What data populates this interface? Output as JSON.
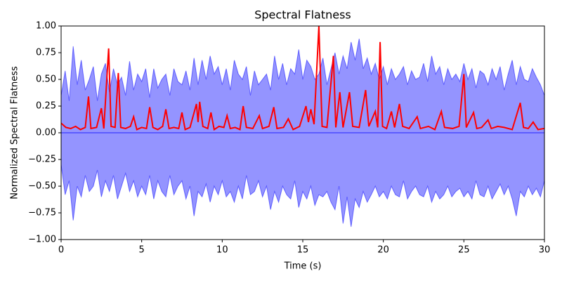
{
  "chart_data": {
    "type": "line",
    "title": "Spectral Flatness",
    "x_label": "Time (s)",
    "y_label": "Normalized Spectral Flatness",
    "xlim": [
      0,
      30
    ],
    "ylim": [
      -1,
      1
    ],
    "xticks": [
      0,
      5,
      10,
      15,
      20,
      25,
      30
    ],
    "yticks": [
      {
        "value": -1,
        "label": "−1.00"
      },
      {
        "value": -0.75,
        "label": "−0.75"
      },
      {
        "value": -0.5,
        "label": "−0.50"
      },
      {
        "value": -0.25,
        "label": "−0.25"
      },
      {
        "value": 0,
        "label": "0.00"
      },
      {
        "value": 0.25,
        "label": "0.25"
      },
      {
        "value": 0.5,
        "label": "0.50"
      },
      {
        "value": 0.75,
        "label": "0.75"
      },
      {
        "value": 1,
        "label": "1.00"
      }
    ],
    "series": [
      {
        "color": "#0000ff",
        "x": [
          0,
          0.25,
          0.5,
          0.75,
          1,
          1.25,
          1.5,
          1.75,
          2,
          2.25,
          2.5,
          2.75,
          3,
          3.25,
          3.5,
          3.75,
          4,
          4.25,
          4.5,
          4.75,
          5,
          5.25,
          5.5,
          5.75,
          6,
          6.25,
          6.5,
          6.75,
          7,
          7.25,
          7.5,
          7.75,
          8,
          8.25,
          8.5,
          8.75,
          9,
          9.25,
          9.5,
          9.75,
          10,
          10.25,
          10.5,
          10.75,
          11,
          11.25,
          11.5,
          11.75,
          12,
          12.25,
          12.5,
          12.75,
          13,
          13.25,
          13.5,
          13.75,
          14,
          14.25,
          14.5,
          14.75,
          15,
          15.25,
          15.5,
          15.75,
          16,
          16.25,
          16.5,
          16.75,
          17,
          17.25,
          17.5,
          17.75,
          18,
          18.25,
          18.5,
          18.75,
          19,
          19.25,
          19.5,
          19.75,
          20,
          20.25,
          20.5,
          20.75,
          21,
          21.25,
          21.5,
          21.75,
          22,
          22.25,
          22.5,
          22.75,
          23,
          23.25,
          23.5,
          23.75,
          24,
          24.25,
          24.5,
          24.75,
          25,
          25.25,
          25.5,
          25.75,
          26,
          26.25,
          26.5,
          26.75,
          27,
          27.25,
          27.5,
          27.75,
          28,
          28.25,
          28.5,
          28.75,
          29,
          29.25,
          29.5,
          29.75,
          30
        ],
        "upper": [
          0.35,
          0.58,
          0.3,
          0.81,
          0.45,
          0.68,
          0.4,
          0.5,
          0.62,
          0.3,
          0.55,
          0.65,
          0.38,
          0.6,
          0.45,
          0.52,
          0.35,
          0.67,
          0.4,
          0.55,
          0.48,
          0.6,
          0.33,
          0.6,
          0.42,
          0.5,
          0.55,
          0.35,
          0.6,
          0.48,
          0.45,
          0.58,
          0.4,
          0.7,
          0.45,
          0.68,
          0.5,
          0.72,
          0.55,
          0.62,
          0.45,
          0.6,
          0.4,
          0.68,
          0.55,
          0.5,
          0.62,
          0.35,
          0.58,
          0.45,
          0.5,
          0.55,
          0.4,
          0.72,
          0.5,
          0.65,
          0.45,
          0.6,
          0.55,
          0.78,
          0.5,
          0.68,
          0.62,
          0.5,
          0.55,
          0.7,
          0.45,
          0.6,
          0.75,
          0.55,
          0.72,
          0.6,
          0.85,
          0.68,
          0.88,
          0.6,
          0.7,
          0.55,
          0.65,
          0.5,
          0.62,
          0.45,
          0.6,
          0.5,
          0.55,
          0.62,
          0.45,
          0.58,
          0.5,
          0.52,
          0.65,
          0.48,
          0.72,
          0.55,
          0.62,
          0.45,
          0.6,
          0.5,
          0.55,
          0.48,
          0.65,
          0.5,
          0.6,
          0.42,
          0.58,
          0.55,
          0.45,
          0.6,
          0.5,
          0.62,
          0.4,
          0.55,
          0.68,
          0.45,
          0.62,
          0.5,
          0.48,
          0.6,
          0.52,
          0.45,
          0.35
        ],
        "lower": [
          -0.3,
          -0.58,
          -0.45,
          -0.82,
          -0.5,
          -0.6,
          -0.4,
          -0.55,
          -0.5,
          -0.35,
          -0.6,
          -0.45,
          -0.55,
          -0.4,
          -0.62,
          -0.5,
          -0.38,
          -0.55,
          -0.45,
          -0.6,
          -0.5,
          -0.58,
          -0.4,
          -0.62,
          -0.45,
          -0.55,
          -0.6,
          -0.4,
          -0.58,
          -0.5,
          -0.45,
          -0.62,
          -0.5,
          -0.78,
          -0.55,
          -0.6,
          -0.48,
          -0.65,
          -0.5,
          -0.58,
          -0.45,
          -0.6,
          -0.55,
          -0.65,
          -0.5,
          -0.62,
          -0.4,
          -0.58,
          -0.55,
          -0.45,
          -0.6,
          -0.5,
          -0.72,
          -0.55,
          -0.65,
          -0.5,
          -0.58,
          -0.62,
          -0.45,
          -0.7,
          -0.55,
          -0.62,
          -0.5,
          -0.68,
          -0.58,
          -0.6,
          -0.55,
          -0.65,
          -0.72,
          -0.5,
          -0.85,
          -0.6,
          -0.88,
          -0.62,
          -0.7,
          -0.55,
          -0.65,
          -0.58,
          -0.5,
          -0.6,
          -0.55,
          -0.62,
          -0.5,
          -0.58,
          -0.6,
          -0.45,
          -0.62,
          -0.55,
          -0.5,
          -0.58,
          -0.6,
          -0.5,
          -0.65,
          -0.55,
          -0.62,
          -0.58,
          -0.5,
          -0.6,
          -0.55,
          -0.52,
          -0.6,
          -0.55,
          -0.62,
          -0.45,
          -0.58,
          -0.6,
          -0.5,
          -0.62,
          -0.55,
          -0.48,
          -0.58,
          -0.5,
          -0.62,
          -0.78,
          -0.55,
          -0.6,
          -0.5,
          -0.58,
          -0.52,
          -0.6,
          -0.45
        ]
      },
      {
        "color": "#ff0000",
        "x": [
          0,
          0.3,
          0.6,
          0.9,
          1.2,
          1.5,
          1.7,
          1.85,
          2.2,
          2.5,
          2.65,
          2.95,
          3.1,
          3.35,
          3.55,
          3.7,
          4,
          4.3,
          4.5,
          4.7,
          5,
          5.3,
          5.5,
          5.7,
          6,
          6.3,
          6.5,
          6.7,
          7,
          7.3,
          7.5,
          7.7,
          8,
          8.4,
          8.5,
          8.6,
          8.8,
          9.1,
          9.3,
          9.5,
          9.8,
          10.1,
          10.3,
          10.5,
          10.8,
          11.1,
          11.3,
          11.5,
          11.9,
          12.3,
          12.5,
          12.9,
          13.2,
          13.4,
          13.8,
          14.1,
          14.4,
          14.8,
          15.2,
          15.35,
          15.5,
          15.7,
          16,
          16.2,
          16.5,
          16.9,
          17.05,
          17.3,
          17.5,
          17.9,
          18.1,
          18.5,
          18.9,
          19.1,
          19.5,
          19.65,
          19.8,
          19.95,
          20.2,
          20.5,
          20.7,
          21,
          21.2,
          21.6,
          22.1,
          22.3,
          22.8,
          23.2,
          23.6,
          23.8,
          24.3,
          24.7,
          25,
          25.15,
          25.6,
          25.8,
          26.1,
          26.5,
          26.7,
          27.1,
          27.5,
          28,
          28.5,
          28.7,
          29,
          29.3,
          29.6,
          30
        ],
        "values": [
          0.09,
          0.05,
          0.04,
          0.06,
          0.03,
          0.05,
          0.34,
          0.04,
          0.05,
          0.23,
          0.04,
          0.79,
          0.06,
          0.05,
          0.56,
          0.05,
          0.04,
          0.06,
          0.15,
          0.03,
          0.05,
          0.04,
          0.24,
          0.05,
          0.03,
          0.06,
          0.22,
          0.04,
          0.05,
          0.04,
          0.19,
          0.03,
          0.05,
          0.27,
          0.1,
          0.29,
          0.06,
          0.04,
          0.19,
          0.03,
          0.06,
          0.05,
          0.16,
          0.04,
          0.05,
          0.03,
          0.25,
          0.05,
          0.04,
          0.16,
          0.04,
          0.06,
          0.24,
          0.04,
          0.05,
          0.13,
          0.03,
          0.06,
          0.25,
          0.1,
          0.22,
          0.08,
          1.0,
          0.06,
          0.05,
          0.72,
          0.05,
          0.38,
          0.05,
          0.38,
          0.06,
          0.05,
          0.4,
          0.06,
          0.2,
          0.05,
          0.85,
          0.06,
          0.04,
          0.2,
          0.05,
          0.27,
          0.06,
          0.04,
          0.15,
          0.04,
          0.06,
          0.03,
          0.2,
          0.05,
          0.04,
          0.06,
          0.55,
          0.05,
          0.19,
          0.04,
          0.05,
          0.12,
          0.04,
          0.06,
          0.05,
          0.03,
          0.28,
          0.05,
          0.04,
          0.1,
          0.03,
          0.04
        ]
      }
    ]
  }
}
